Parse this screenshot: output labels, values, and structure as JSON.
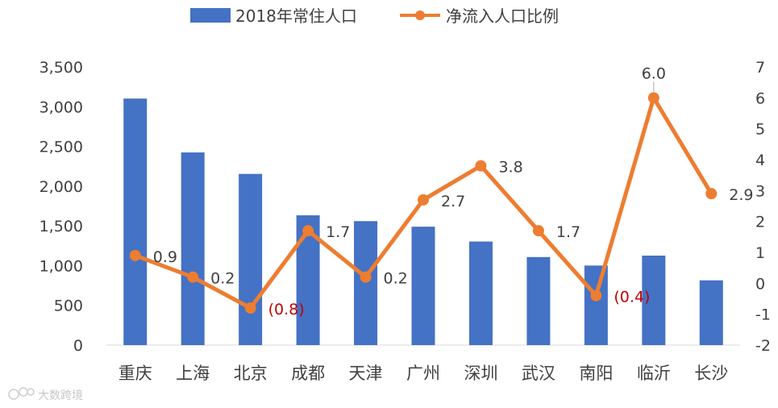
{
  "chart_data": {
    "type": "bar+line",
    "categories": [
      "重庆",
      "上海",
      "北京",
      "成都",
      "天津",
      "广州",
      "深圳",
      "武汉",
      "南阳",
      "临沂",
      "长沙"
    ],
    "series": [
      {
        "name": "2018年常住人口",
        "type": "bar",
        "axis": "left",
        "color": "#4472C4",
        "values": [
          3102,
          2424,
          2154,
          1633,
          1560,
          1490,
          1303,
          1108,
          1001,
          1126,
          815
        ]
      },
      {
        "name": "净流入人口比例",
        "type": "line",
        "axis": "right",
        "color": "#ED7D31",
        "values": [
          0.9,
          0.2,
          -0.8,
          1.7,
          0.2,
          2.7,
          3.8,
          1.7,
          -0.4,
          6.0,
          2.9
        ],
        "labels": [
          "0.9",
          "0.2",
          "(0.8)",
          "1.7",
          "0.2",
          "2.7",
          "3.8",
          "1.7",
          "(0.4)",
          "6.0",
          "2.9"
        ]
      }
    ],
    "y_left": {
      "min": 0,
      "max": 3500,
      "ticks": [
        "0",
        "500",
        "1,000",
        "1,500",
        "2,000",
        "2,500",
        "3,000",
        "3,500"
      ]
    },
    "y_right": {
      "min": -2,
      "max": 7,
      "ticks": [
        "-2",
        "-1",
        "0",
        "1",
        "2",
        "3",
        "4",
        "5",
        "6",
        "7"
      ]
    },
    "legend_position": "top",
    "grid": false,
    "negative_label_color": "#C00000",
    "label_color": "#404040"
  },
  "watermark": {
    "text": "大数跨境"
  }
}
